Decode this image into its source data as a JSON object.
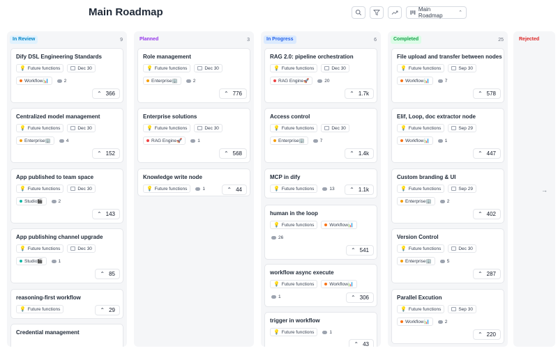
{
  "header": {
    "title": "Main Roadmap",
    "select_label": "Main Roadmap",
    "icons": [
      "search-icon",
      "filter-icon",
      "trend-icon"
    ]
  },
  "colors": {
    "in_review": "#0ea5e9",
    "planned": "#a855f7",
    "in_progress": "#3b82f6",
    "completed": "#22c55e",
    "rejected": "#ef4444",
    "workflow": "#f97316",
    "enterprise": "#f59e0b",
    "studio": "#14b8a6",
    "rag": "#ef4444"
  },
  "columns": [
    {
      "label": "In Review",
      "count": "9",
      "cards": [
        {
          "title": "Dify DSL Engineering Standards",
          "tag": "Future functions",
          "date": "Dec 30",
          "module": "Workflow📊",
          "module_color": "#f97316",
          "comments": "2",
          "votes": "366"
        },
        {
          "title": "Centralized model management",
          "tag": "Future functions",
          "date": "Dec 30",
          "module": "Enterprise🏢",
          "module_color": "#f59e0b",
          "comments": "4",
          "votes": "152"
        },
        {
          "title": "App published to team space",
          "tag": "Future functions",
          "date": "Dec 30",
          "module": "Studio🎬",
          "module_color": "#14b8a6",
          "comments": "2",
          "votes": "143"
        },
        {
          "title": "App publishing channel upgrade",
          "tag": "Future functions",
          "date": "Dec 30",
          "module": "Studio🎬",
          "module_color": "#14b8a6",
          "comments": "1",
          "votes": "85"
        },
        {
          "title": "reasoning-first workflow",
          "tag": "Future functions",
          "votes": "29"
        },
        {
          "title": "Credential management"
        }
      ]
    },
    {
      "label": "Planned",
      "count": "3",
      "cards": [
        {
          "title": "Role management",
          "tag": "Future functions",
          "date": "Dec 30",
          "module": "Enterprise🏢",
          "module_color": "#f59e0b",
          "comments": "2",
          "votes": "776"
        },
        {
          "title": "Enterprise solutions",
          "tag": "Future functions",
          "date": "Dec 30",
          "module": "RAG Engine🚀",
          "module_color": "#ef4444",
          "comments": "1",
          "votes": "568"
        },
        {
          "title": "Knowledge write node",
          "tag": "Future functions",
          "comments": "1",
          "votes": "44"
        }
      ]
    },
    {
      "label": "In Progress",
      "count": "6",
      "cards": [
        {
          "title": "RAG 2.0: pipeline orchestration",
          "tag": "Future functions",
          "date": "Dec 30",
          "module": "RAG Engine🚀",
          "module_color": "#ef4444",
          "comments": "20",
          "votes": "1.7k"
        },
        {
          "title": "Access control",
          "tag": "Future functions",
          "date": "Dec 30",
          "module": "Enterprise🏢",
          "module_color": "#f59e0b",
          "comments": "7",
          "votes": "1.4k"
        },
        {
          "title": "MCP in dify",
          "tag": "Future functions",
          "comments": "13",
          "votes": "1.1k"
        },
        {
          "title": "human in the loop",
          "tag": "Future functions",
          "module": "Workflow📊",
          "module_color": "#f97316",
          "comments": "26",
          "votes": "541"
        },
        {
          "title": "workflow async execute",
          "tag": "Future functions",
          "module": "Workflow📊",
          "module_color": "#f97316",
          "comments": "1",
          "votes": "306"
        },
        {
          "title": "trigger in workflow",
          "tag": "Future functions",
          "comments": "1",
          "votes": "43"
        }
      ]
    },
    {
      "label": "Completed",
      "count": "25",
      "cards": [
        {
          "title": "File upload and transfer between nodes",
          "tag": "Future functions",
          "date": "Sep 30",
          "module": "Workflow📊",
          "module_color": "#f97316",
          "comments": "7",
          "votes": "578"
        },
        {
          "title": "Elif, Loop, doc extractor node",
          "tag": "Future functions",
          "date": "Sep 29",
          "module": "Workflow📊",
          "module_color": "#f97316",
          "comments": "1",
          "votes": "447"
        },
        {
          "title": "Custom branding & UI",
          "tag": "Future functions",
          "date": "Sep 29",
          "module": "Enterprise🏢",
          "module_color": "#f59e0b",
          "comments": "2",
          "votes": "402"
        },
        {
          "title": "Version Control",
          "tag": "Future functions",
          "date": "Dec 30",
          "module": "Enterprise🏢",
          "module_color": "#f59e0b",
          "comments": "5",
          "votes": "287"
        },
        {
          "title": "Parallel Excution",
          "tag": "Future functions",
          "date": "Sep 30",
          "module": "Workflow📊",
          "module_color": "#f97316",
          "comments": "2",
          "votes": "220"
        }
      ]
    },
    {
      "label": "Rejected",
      "count": "",
      "cards": []
    }
  ]
}
